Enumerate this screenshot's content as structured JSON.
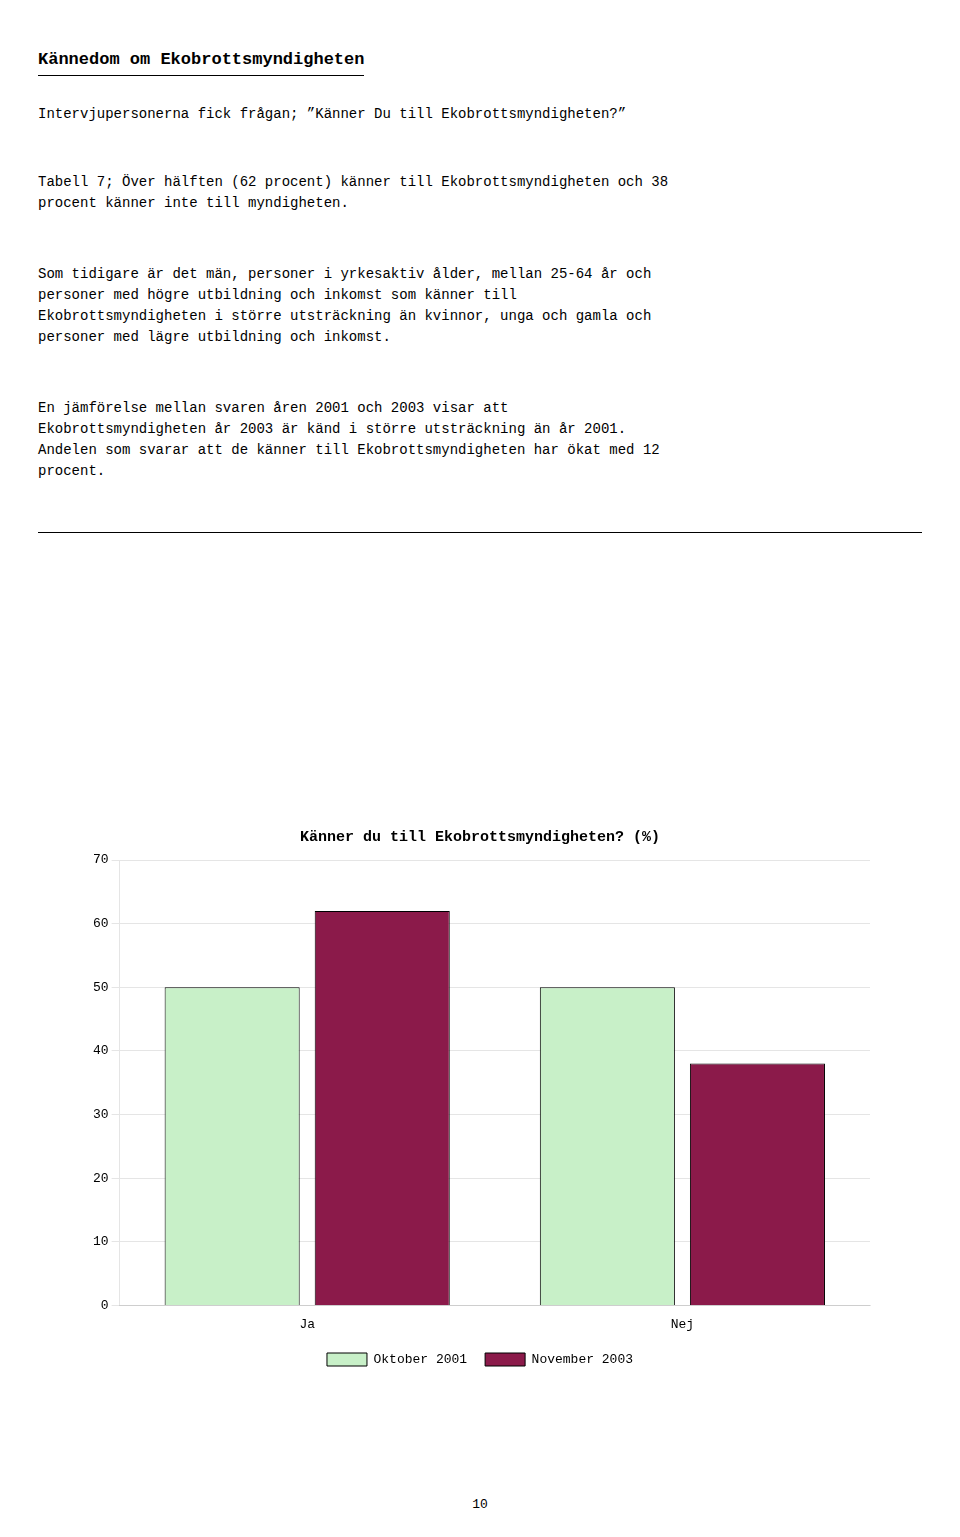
{
  "title": "Kännedom om Ekobrottsmyndigheten",
  "subtitle": "Intervjupersonerna fick frågan; ”Känner Du till Ekobrottsmyndigheten?”",
  "paragraphs": [
    "Tabell 7; Över hälften (62 procent) känner till Ekobrottsmyndigheten och 38\nprocent känner inte till myndigheten.",
    "Som tidigare är det män, personer i yrkesaktiv ålder, mellan 25-64 år och\npersoner med högre utbildning och inkomst som känner till\nEkobrottsmyndigheten i större utsträckning än kvinnor, unga och gamla och\npersoner med lägre utbildning och inkomst.",
    "En jämförelse mellan svaren åren 2001 och 2003 visar att\nEkobrottsmyndigheten år 2003 är känd i större utsträckning än år 2001.\nAndelen som svarar att de känner till Ekobrottsmyndigheten har ökat med 12\nprocent."
  ],
  "page_number": "10",
  "chart_data": {
    "type": "bar",
    "title": "Känner du till Ekobrottsmyndigheten? (%)",
    "categories": [
      "Ja",
      "Nej"
    ],
    "series": [
      {
        "name": "Oktober 2001",
        "values": [
          50,
          50
        ],
        "color": "#c8f0c8"
      },
      {
        "name": "November 2003",
        "values": [
          62,
          38
        ],
        "color": "#8b1a4a"
      }
    ],
    "ylim": [
      0,
      70
    ],
    "yticks": [
      0,
      10,
      20,
      30,
      40,
      50,
      60,
      70
    ],
    "grid": true,
    "legend": "bottom"
  }
}
